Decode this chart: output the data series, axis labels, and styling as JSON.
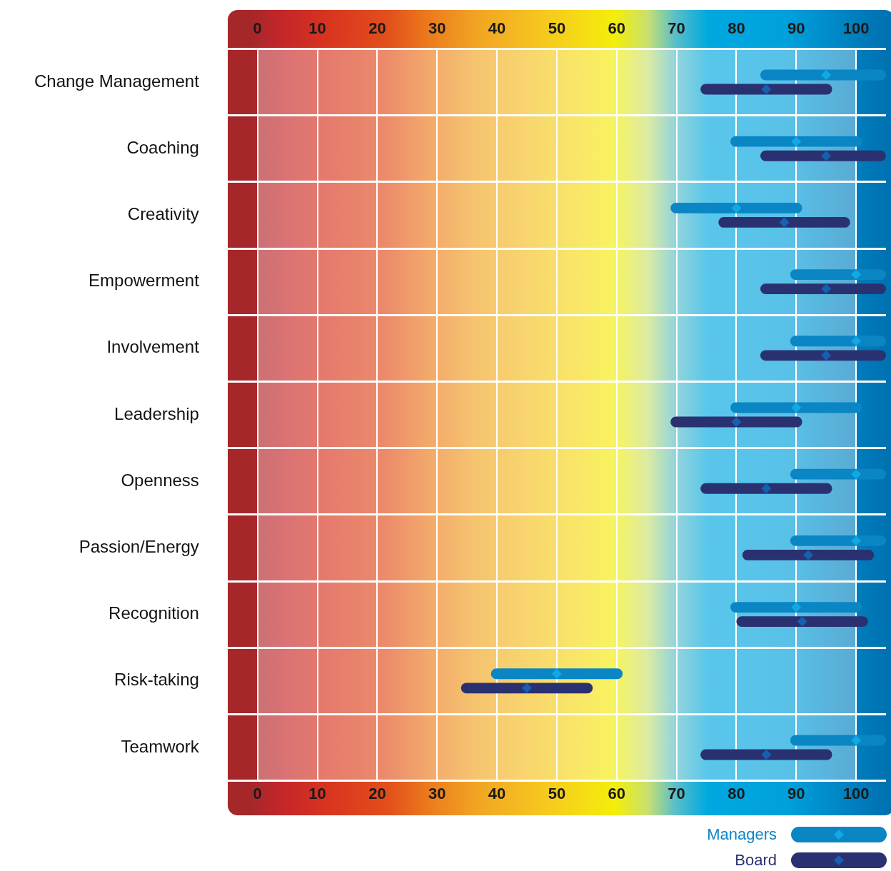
{
  "chart_data": {
    "type": "bar",
    "orientation": "horizontal",
    "categories": [
      "Change Management",
      "Coaching",
      "Creativity",
      "Empowerment",
      "Involvement",
      "Leadership",
      "Openness",
      "Passion/Energy",
      "Recognition",
      "Risk-taking",
      "Teamwork"
    ],
    "series": [
      {
        "name": "Managers",
        "color": "#0a86c4",
        "base": [
          84,
          79,
          69,
          89,
          89,
          79,
          89,
          89,
          79,
          39,
          89
        ],
        "values": [
          21,
          22,
          22,
          16,
          16,
          22,
          16,
          16,
          22,
          22,
          16
        ]
      },
      {
        "name": "Board",
        "color": "#2a3171",
        "base": [
          74,
          84,
          77,
          84,
          84,
          69,
          74,
          81,
          80,
          34,
          74
        ],
        "values": [
          22,
          21,
          22,
          21,
          21,
          22,
          22,
          22,
          22,
          22,
          22
        ]
      },
      {
        "type": "scatter",
        "color": "#12a8e4",
        "values": [
          95,
          90,
          80,
          100,
          100,
          90,
          100,
          100,
          90,
          50,
          100
        ]
      },
      {
        "type": "scatter",
        "color": "#1560b0",
        "values": [
          85,
          95,
          88,
          95,
          95,
          80,
          85,
          92,
          91,
          45,
          85
        ]
      }
    ],
    "xlim": [
      -5,
      105
    ],
    "xticks": [
      0,
      10,
      20,
      30,
      40,
      50,
      60,
      70,
      80,
      90,
      100
    ],
    "x2lim": [
      -5,
      105
    ],
    "x2ticks": [
      0,
      10,
      20,
      30,
      40,
      50,
      60,
      70,
      80,
      90,
      100
    ],
    "grid": true,
    "legend": "bottom right",
    "marker": "diamond"
  }
}
